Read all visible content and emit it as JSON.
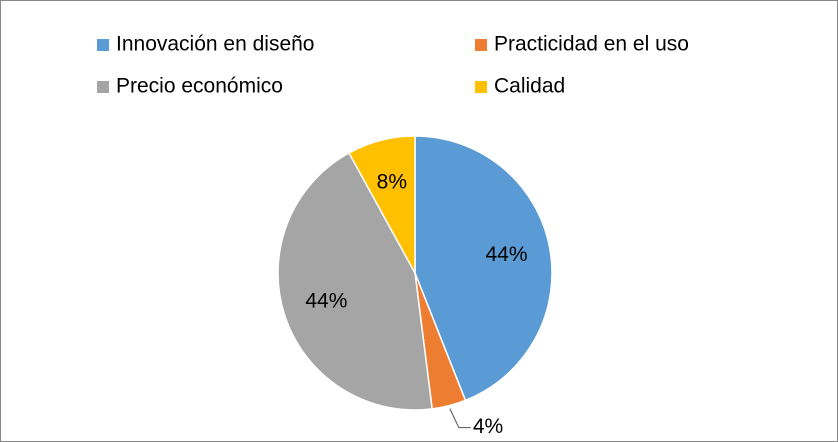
{
  "chart_data": {
    "type": "pie",
    "categories": [
      "Innovación en diseño",
      "Practicidad en el uso",
      "Precio económico",
      "Calidad"
    ],
    "values": [
      44,
      4,
      44,
      8
    ],
    "value_labels": [
      "44%",
      "4%",
      "44%",
      "8%"
    ],
    "colors": [
      "#5b9bd5",
      "#ed7d31",
      "#a5a5a5",
      "#ffc000"
    ],
    "legend": "top"
  }
}
